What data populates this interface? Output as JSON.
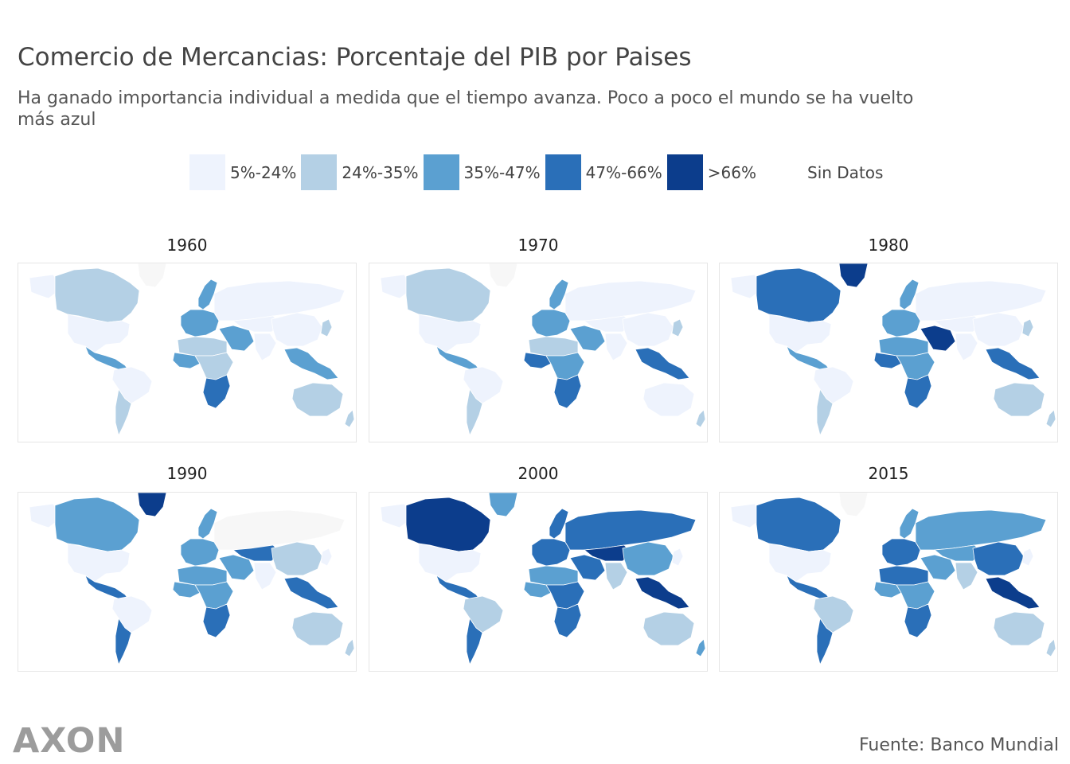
{
  "header": {
    "title": "Comercio de Mercancias: Porcentaje del PIB por Paises",
    "subtitle": "Ha ganado importancia individual a medida que el tiempo avanza. Poco a poco el mundo se ha vuelto más azul"
  },
  "legend": {
    "items": [
      {
        "label": "5%-24%",
        "color": "#eef3fd"
      },
      {
        "label": "24%-35%",
        "color": "#b4d0e5"
      },
      {
        "label": "35%-47%",
        "color": "#5ba0d1"
      },
      {
        "label": "47%-66%",
        "color": "#2a6fb8"
      },
      {
        "label": ">66%",
        "color": "#0c3d8c"
      }
    ],
    "no_data_label": "Sin Datos"
  },
  "chart_data": {
    "type": "choropleth",
    "panels": [
      {
        "year": "1960",
        "levels": {
          "north_america": 1,
          "usa": 0,
          "alaska": 0,
          "greenland": -1,
          "central_america": 2,
          "south_america": 0,
          "south_america_south": 1,
          "europe_west": 2,
          "scandinavia": 2,
          "russia": 0,
          "north_africa": 1,
          "west_africa": 2,
          "central_africa": 1,
          "southern_africa": 3,
          "middle_east": 2,
          "central_asia": 0,
          "south_asia": 0,
          "china": 0,
          "southeast_asia": 2,
          "japan": 1,
          "australia": 1,
          "new_zealand": 1
        }
      },
      {
        "year": "1970",
        "levels": {
          "north_america": 1,
          "usa": 0,
          "alaska": 0,
          "greenland": -1,
          "central_america": 2,
          "south_america": 0,
          "south_america_south": 1,
          "europe_west": 2,
          "scandinavia": 2,
          "russia": 0,
          "north_africa": 1,
          "west_africa": 3,
          "central_africa": 2,
          "southern_africa": 3,
          "middle_east": 2,
          "central_asia": 0,
          "south_asia": 0,
          "china": 0,
          "southeast_asia": 3,
          "japan": 1,
          "australia": 0,
          "new_zealand": 1
        }
      },
      {
        "year": "1980",
        "levels": {
          "north_america": 3,
          "usa": 0,
          "alaska": 0,
          "greenland": 4,
          "central_america": 2,
          "south_america": 0,
          "south_america_south": 1,
          "europe_west": 2,
          "scandinavia": 2,
          "russia": 0,
          "north_africa": 2,
          "west_africa": 3,
          "central_africa": 2,
          "southern_africa": 3,
          "middle_east": 4,
          "central_asia": 0,
          "south_asia": 0,
          "china": 0,
          "southeast_asia": 3,
          "japan": 1,
          "australia": 1,
          "new_zealand": 1
        }
      },
      {
        "year": "1990",
        "levels": {
          "north_america": 2,
          "usa": 0,
          "alaska": 0,
          "greenland": 4,
          "central_america": 3,
          "south_america": 0,
          "south_america_south": 3,
          "europe_west": 2,
          "scandinavia": 2,
          "russia": -1,
          "north_africa": 2,
          "west_africa": 2,
          "central_africa": 2,
          "southern_africa": 3,
          "middle_east": 2,
          "central_asia": 3,
          "south_asia": 0,
          "china": 1,
          "southeast_asia": 3,
          "japan": 0,
          "australia": 1,
          "new_zealand": 1
        }
      },
      {
        "year": "2000",
        "levels": {
          "north_america": 4,
          "usa": 0,
          "alaska": 0,
          "greenland": 2,
          "central_america": 3,
          "south_america": 1,
          "south_america_south": 3,
          "europe_west": 3,
          "scandinavia": 3,
          "russia": 3,
          "north_africa": 2,
          "west_africa": 2,
          "central_africa": 3,
          "southern_africa": 3,
          "middle_east": 3,
          "central_asia": 4,
          "south_asia": 1,
          "china": 2,
          "southeast_asia": 4,
          "japan": 0,
          "australia": 1,
          "new_zealand": 2
        }
      },
      {
        "year": "2015",
        "levels": {
          "north_america": 3,
          "usa": 0,
          "alaska": 0,
          "greenland": -1,
          "central_america": 3,
          "south_america": 1,
          "south_america_south": 3,
          "europe_west": 3,
          "scandinavia": 2,
          "russia": 2,
          "north_africa": 3,
          "west_africa": 2,
          "central_africa": 2,
          "southern_africa": 3,
          "middle_east": 2,
          "central_asia": 2,
          "south_asia": 1,
          "china": 3,
          "southeast_asia": 4,
          "japan": 0,
          "australia": 1,
          "new_zealand": 1
        }
      }
    ]
  },
  "footer": {
    "brand": "AXON",
    "source": "Fuente: Banco Mundial"
  }
}
